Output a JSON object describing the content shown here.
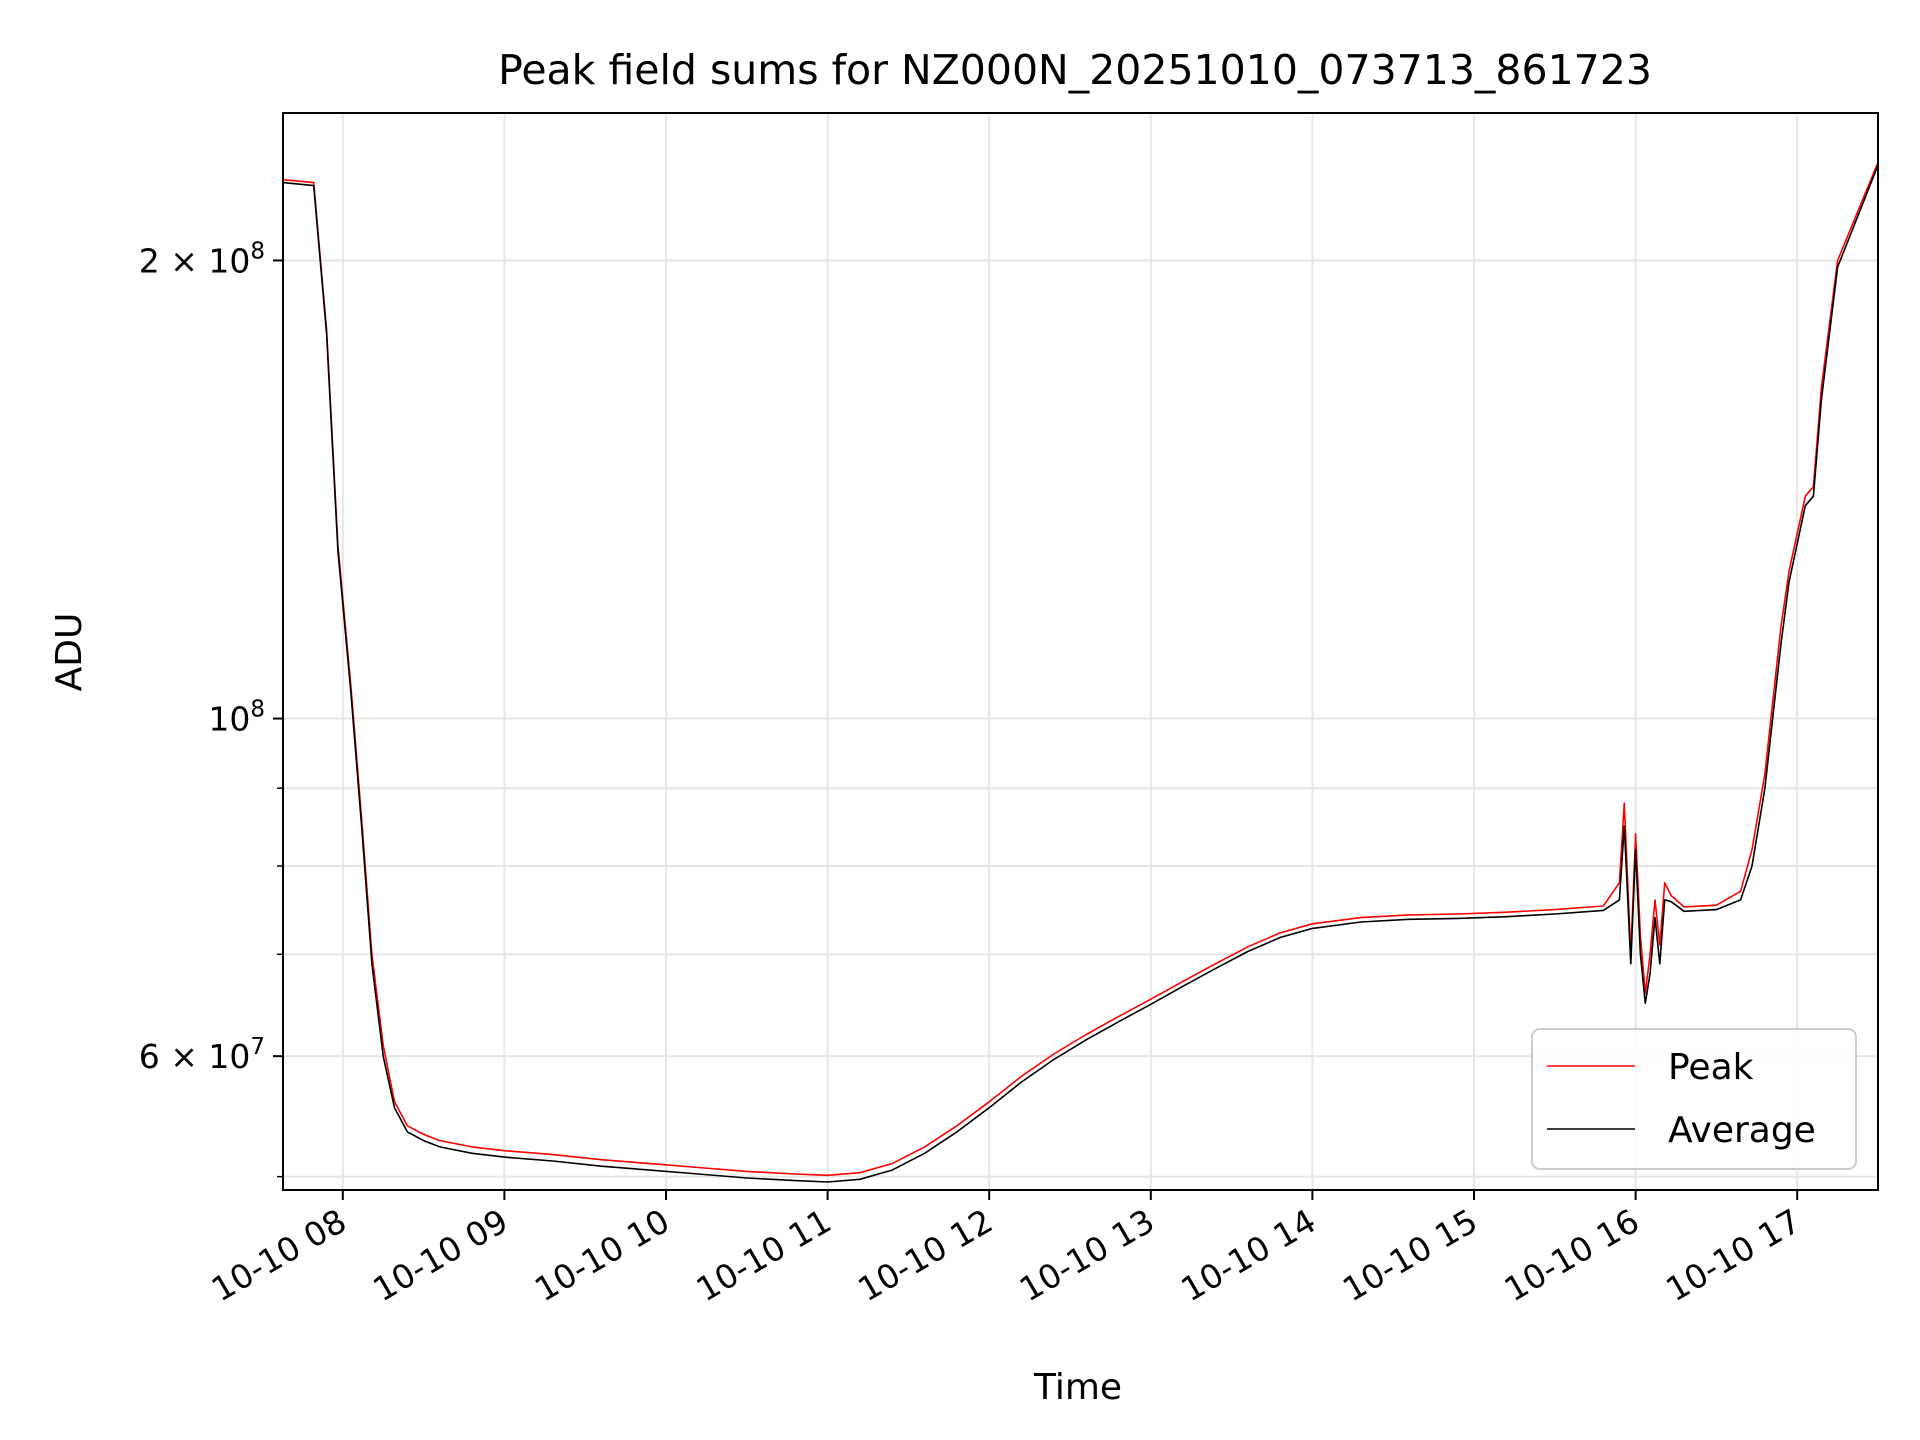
{
  "chart_data": {
    "type": "line",
    "title": "Peak field sums for NZ000N_20251010_073713_861723",
    "xlabel": "Time",
    "ylabel": "ADU",
    "yscale": "log",
    "grid": true,
    "legend_position": "lower-right",
    "xlim": [
      7.63,
      17.5
    ],
    "ylim": [
      49000000,
      250000000
    ],
    "x_units": "hour of day on 2025-10-10",
    "x_ticks": [
      {
        "value": 8,
        "label": "10-10 08"
      },
      {
        "value": 9,
        "label": "10-10 09"
      },
      {
        "value": 10,
        "label": "10-10 10"
      },
      {
        "value": 11,
        "label": "10-10 11"
      },
      {
        "value": 12,
        "label": "10-10 12"
      },
      {
        "value": 13,
        "label": "10-10 13"
      },
      {
        "value": 14,
        "label": "10-10 14"
      },
      {
        "value": 15,
        "label": "10-10 15"
      },
      {
        "value": 16,
        "label": "10-10 16"
      },
      {
        "value": 17,
        "label": "10-10 17"
      }
    ],
    "y_ticks": [
      {
        "value": 200000000,
        "base": "2 × 10",
        "exp": "8"
      },
      {
        "value": 100000000,
        "base": "10",
        "exp": "8"
      },
      {
        "value": 60000000,
        "base": "6 × 10",
        "exp": "7"
      }
    ],
    "y_minor_ticks": [
      50000000,
      70000000,
      80000000,
      90000000
    ],
    "series": [
      {
        "name": "Peak",
        "color": "#ff0000",
        "x": [
          7.63,
          7.82,
          7.9,
          7.97,
          8.05,
          8.12,
          8.18,
          8.25,
          8.32,
          8.4,
          8.5,
          8.6,
          8.8,
          9.0,
          9.3,
          9.6,
          9.9,
          10.2,
          10.5,
          10.8,
          11.0,
          11.2,
          11.4,
          11.6,
          11.8,
          12.0,
          12.2,
          12.4,
          12.6,
          12.8,
          13.0,
          13.2,
          13.4,
          13.6,
          13.8,
          14.0,
          14.3,
          14.6,
          14.9,
          15.2,
          15.5,
          15.8,
          15.9,
          15.93,
          15.97,
          16.0,
          16.03,
          16.06,
          16.09,
          16.12,
          16.15,
          16.18,
          16.22,
          16.3,
          16.5,
          16.65,
          16.72,
          16.8,
          16.9,
          16.95,
          17.05,
          17.1,
          17.15,
          17.25,
          17.5
        ],
        "y": [
          226000000,
          225000000,
          180000000,
          130000000,
          105000000,
          85000000,
          70000000,
          61000000,
          56000000,
          54000000,
          53300000,
          52800000,
          52300000,
          52000000,
          51700000,
          51300000,
          51000000,
          50700000,
          50400000,
          50200000,
          50100000,
          50300000,
          51000000,
          52300000,
          54000000,
          56000000,
          58200000,
          60200000,
          62000000,
          63700000,
          65400000,
          67200000,
          69000000,
          70800000,
          72300000,
          73300000,
          74000000,
          74300000,
          74400000,
          74600000,
          74900000,
          75300000,
          78000000,
          88000000,
          70000000,
          84000000,
          72000000,
          66000000,
          70000000,
          76000000,
          71000000,
          78000000,
          76500000,
          75200000,
          75400000,
          77000000,
          82000000,
          92000000,
          115000000,
          125000000,
          140000000,
          142000000,
          165000000,
          200000000,
          232000000
        ]
      },
      {
        "name": "Average",
        "color": "#000000",
        "x": [
          7.63,
          7.82,
          7.9,
          7.97,
          8.05,
          8.12,
          8.18,
          8.25,
          8.32,
          8.4,
          8.5,
          8.6,
          8.8,
          9.0,
          9.3,
          9.6,
          9.9,
          10.2,
          10.5,
          10.8,
          11.0,
          11.2,
          11.4,
          11.6,
          11.8,
          12.0,
          12.2,
          12.4,
          12.6,
          12.8,
          13.0,
          13.2,
          13.4,
          13.6,
          13.8,
          14.0,
          14.3,
          14.6,
          14.9,
          15.2,
          15.5,
          15.8,
          15.9,
          15.93,
          15.97,
          16.0,
          16.03,
          16.06,
          16.09,
          16.12,
          16.15,
          16.18,
          16.22,
          16.3,
          16.5,
          16.65,
          16.72,
          16.8,
          16.9,
          16.95,
          17.05,
          17.1,
          17.15,
          17.25,
          17.5
        ],
        "y": [
          225000000,
          224000000,
          179000000,
          129000000,
          104000000,
          84000000,
          69000000,
          60000000,
          55500000,
          53500000,
          52800000,
          52300000,
          51800000,
          51500000,
          51200000,
          50800000,
          50500000,
          50200000,
          49900000,
          49700000,
          49600000,
          49800000,
          50500000,
          51800000,
          53500000,
          55500000,
          57700000,
          59700000,
          61500000,
          63200000,
          64900000,
          66700000,
          68500000,
          70300000,
          71800000,
          72800000,
          73500000,
          73800000,
          73900000,
          74100000,
          74400000,
          74800000,
          76000000,
          85000000,
          69000000,
          82000000,
          70000000,
          65000000,
          68000000,
          74000000,
          69000000,
          76000000,
          75800000,
          74700000,
          74900000,
          76000000,
          80000000,
          90000000,
          112000000,
          123000000,
          138000000,
          140000000,
          162000000,
          198000000,
          231000000
        ]
      }
    ]
  }
}
